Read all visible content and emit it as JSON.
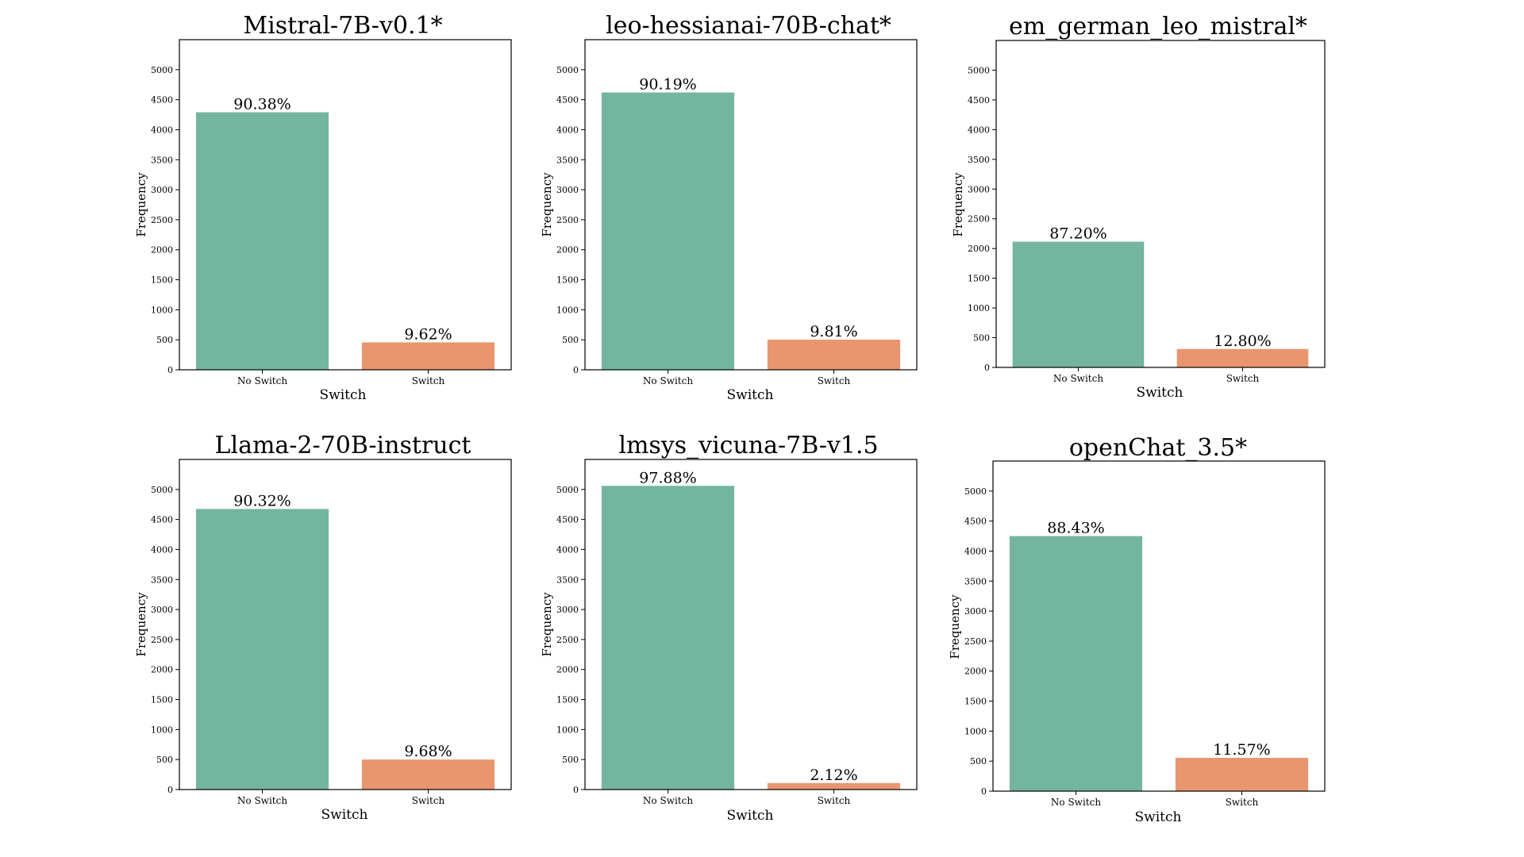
{
  "colors": {
    "no_switch": "#74b5a0",
    "switch": "#e9966f",
    "axis": "#000000"
  },
  "chart_data": [
    {
      "type": "bar",
      "title": "Mistral-7B-v0.1*",
      "xlabel": "Switch",
      "ylabel": "Frequency",
      "categories": [
        "No Switch",
        "Switch"
      ],
      "values": [
        4290,
        457
      ],
      "labels": [
        "90.38%",
        "9.62%"
      ],
      "ylim": [
        0,
        5500
      ],
      "yticks": [
        0,
        500,
        1000,
        1500,
        2000,
        2500,
        3000,
        3500,
        4000,
        4500,
        5000
      ],
      "grid": false
    },
    {
      "type": "bar",
      "title": "leo-hessianai-70B-chat*",
      "xlabel": "Switch",
      "ylabel": "Frequency",
      "categories": [
        "No Switch",
        "Switch"
      ],
      "values": [
        4620,
        502
      ],
      "labels": [
        "90.19%",
        "9.81%"
      ],
      "ylim": [
        0,
        5500
      ],
      "yticks": [
        0,
        500,
        1000,
        1500,
        2000,
        2500,
        3000,
        3500,
        4000,
        4500,
        5000
      ],
      "grid": false
    },
    {
      "type": "bar",
      "title": "em_german_leo_mistral*",
      "xlabel": "Switch",
      "ylabel": "Frequency",
      "categories": [
        "No Switch",
        "Switch"
      ],
      "values": [
        2115,
        310
      ],
      "labels": [
        "87.20%",
        "12.80%"
      ],
      "ylim": [
        0,
        5500
      ],
      "yticks": [
        0,
        500,
        1000,
        1500,
        2000,
        2500,
        3000,
        3500,
        4000,
        4500,
        5000
      ],
      "grid": false
    },
    {
      "type": "bar",
      "title": "Llama-2-70B-instruct",
      "xlabel": "Switch",
      "ylabel": "Frequency",
      "categories": [
        "No Switch",
        "Switch"
      ],
      "values": [
        4675,
        500
      ],
      "labels": [
        "90.32%",
        "9.68%"
      ],
      "ylim": [
        0,
        5500
      ],
      "yticks": [
        0,
        500,
        1000,
        1500,
        2000,
        2500,
        3000,
        3500,
        4000,
        4500,
        5000
      ],
      "grid": false
    },
    {
      "type": "bar",
      "title": "lmsys_vicuna-7B-v1.5",
      "xlabel": "Switch",
      "ylabel": "Frequency",
      "categories": [
        "No Switch",
        "Switch"
      ],
      "values": [
        5060,
        108
      ],
      "labels": [
        "97.88%",
        "2.12%"
      ],
      "ylim": [
        0,
        5500
      ],
      "yticks": [
        0,
        500,
        1000,
        1500,
        2000,
        2500,
        3000,
        3500,
        4000,
        4500,
        5000
      ],
      "grid": false
    },
    {
      "type": "bar",
      "title": "openChat_3.5*",
      "xlabel": "Switch",
      "ylabel": "Frequency",
      "categories": [
        "No Switch",
        "Switch"
      ],
      "values": [
        4250,
        555
      ],
      "labels": [
        "88.43%",
        "11.57%"
      ],
      "ylim": [
        0,
        5500
      ],
      "yticks": [
        0,
        500,
        1000,
        1500,
        2000,
        2500,
        3000,
        3500,
        4000,
        4500,
        5000
      ],
      "grid": false
    }
  ]
}
